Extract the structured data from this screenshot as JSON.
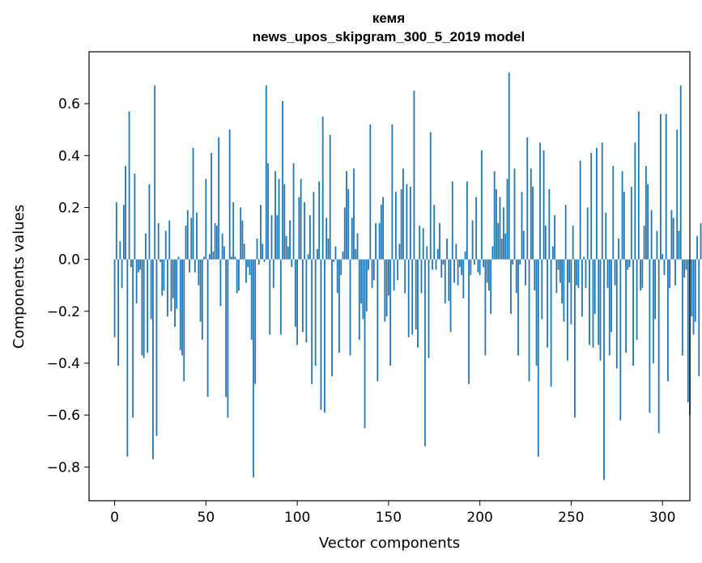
{
  "chart_data": {
    "type": "bar",
    "title": "кемя",
    "subtitle": "news_upos_skipgram_300_5_2019 model",
    "xlabel": "Vector components",
    "ylabel": "Components values",
    "xlim": [
      -14,
      315
    ],
    "ylim": [
      -0.93,
      0.8
    ],
    "xticks": [
      0,
      50,
      100,
      150,
      200,
      250,
      300
    ],
    "yticks": [
      -0.8,
      -0.6,
      -0.4,
      -0.2,
      0.0,
      0.2,
      0.4,
      0.6
    ],
    "ytick_labels": [
      "−0.8",
      "−0.6",
      "−0.4",
      "−0.2",
      "0.0",
      "0.2",
      "0.4",
      "0.6"
    ],
    "xtick_labels": [
      "0",
      "50",
      "100",
      "150",
      "200",
      "250",
      "300"
    ],
    "bar_color": "#1f77b4",
    "grid": false,
    "values": [
      -0.3,
      0.22,
      -0.41,
      0.07,
      -0.11,
      0.21,
      0.36,
      -0.76,
      0.57,
      -0.03,
      -0.61,
      0.33,
      -0.17,
      -0.05,
      -0.04,
      -0.37,
      -0.38,
      0.1,
      -0.36,
      0.29,
      -0.23,
      -0.77,
      0.67,
      -0.68,
      0.14,
      -0.01,
      -0.14,
      -0.12,
      0.11,
      -0.22,
      0.15,
      -0.2,
      -0.15,
      -0.26,
      -0.19,
      0.01,
      -0.35,
      -0.37,
      -0.47,
      0.13,
      0.19,
      -0.05,
      0.16,
      0.43,
      -0.05,
      0.18,
      -0.1,
      -0.24,
      -0.31,
      0.01,
      0.31,
      -0.53,
      0.02,
      0.41,
      0.03,
      0.14,
      0.13,
      0.47,
      -0.18,
      0.1,
      0.05,
      -0.53,
      -0.61,
      0.5,
      0.01,
      0.22,
      0.01,
      -0.13,
      -0.12,
      0.2,
      0.15,
      0.06,
      -0.09,
      -0.03,
      -0.06,
      -0.31,
      -0.84,
      -0.48,
      0.08,
      -0.02,
      0.21,
      0.06,
      -0.01,
      0.67,
      0.37,
      -0.29,
      0.17,
      -0.11,
      0.34,
      0.17,
      0.31,
      -0.29,
      0.61,
      0.29,
      0.09,
      0.05,
      0.15,
      -0.03,
      0.37,
      -0.26,
      -0.33,
      0.24,
      0.31,
      -0.28,
      0.22,
      -0.32,
      0.02,
      0.17,
      -0.48,
      0.26,
      -0.41,
      0.04,
      0.3,
      -0.58,
      0.55,
      -0.59,
      0.16,
      0.08,
      0.48,
      -0.45,
      -0.01,
      0.05,
      -0.13,
      -0.36,
      -0.06,
      0.03,
      0.2,
      0.34,
      0.27,
      -0.37,
      0.16,
      0.35,
      0.04,
      0.1,
      -0.31,
      -0.17,
      -0.23,
      -0.65,
      -0.2,
      -0.04,
      0.52,
      -0.11,
      -0.08,
      0.14,
      -0.47,
      0.14,
      0.21,
      0.24,
      -0.24,
      -0.22,
      -0.14,
      -0.41,
      0.52,
      -0.12,
      0.26,
      -0.08,
      0.06,
      0.27,
      0.35,
      -0.13,
      0.29,
      -0.3,
      0.28,
      -0.29,
      0.65,
      -0.27,
      -0.34,
      0.13,
      -0.13,
      0.12,
      -0.72,
      0.05,
      -0.38,
      0.49,
      -0.04,
      0.21,
      -0.04,
      0.04,
      0.14,
      -0.07,
      -0.02,
      -0.17,
      0.08,
      -0.16,
      -0.28,
      0.3,
      -0.09,
      0.06,
      -0.1,
      -0.03,
      -0.06,
      -0.15,
      0.03,
      0.3,
      -0.48,
      -0.06,
      0.15,
      -0.02,
      0.24,
      -0.05,
      -0.06,
      0.42,
      -0.03,
      -0.37,
      -0.09,
      -0.12,
      -0.21,
      0.05,
      0.34,
      0.27,
      0.14,
      0.24,
      0.08,
      0.2,
      0.1,
      0.31,
      0.72,
      -0.21,
      -0.02,
      0.35,
      -0.13,
      -0.37,
      -0.02,
      0.26,
      0.11,
      -0.1,
      0.47,
      -0.47,
      0.35,
      0.28,
      -0.12,
      -0.41,
      -0.76,
      0.45,
      -0.23,
      0.42,
      0.13,
      -0.34,
      0.27,
      -0.49,
      0.05,
      0.17,
      -0.13,
      -0.04,
      -0.09,
      -0.17,
      -0.24,
      0.21,
      -0.39,
      -0.09,
      -0.25,
      0.13,
      -0.61,
      -0.1,
      -0.11,
      0.38,
      -0.22,
      0.01,
      -0.11,
      0.2,
      -0.33,
      0.41,
      -0.34,
      -0.21,
      0.43,
      -0.33,
      -0.39,
      0.45,
      -0.85,
      0.18,
      -0.11,
      -0.37,
      -0.28,
      0.36,
      -0.1,
      -0.42,
      0.08,
      -0.62,
      0.34,
      0.26,
      -0.36,
      -0.04,
      -0.03,
      0.28,
      -0.41,
      0.45,
      -0.31,
      0.57,
      -0.12,
      -0.11,
      0.13,
      0.36,
      0.29,
      -0.59,
      0.19,
      -0.4,
      -0.23,
      0.11,
      -0.67,
      0.56,
      0.02,
      -0.06,
      0.56,
      -0.47,
      -0.11,
      0.19,
      0.16,
      -0.1,
      0.5,
      0.11,
      0.67,
      -0.37,
      -0.07,
      -0.04,
      -0.55,
      -0.6,
      -0.22,
      -0.29,
      -0.24,
      0.09,
      -0.45,
      0.14
    ]
  }
}
